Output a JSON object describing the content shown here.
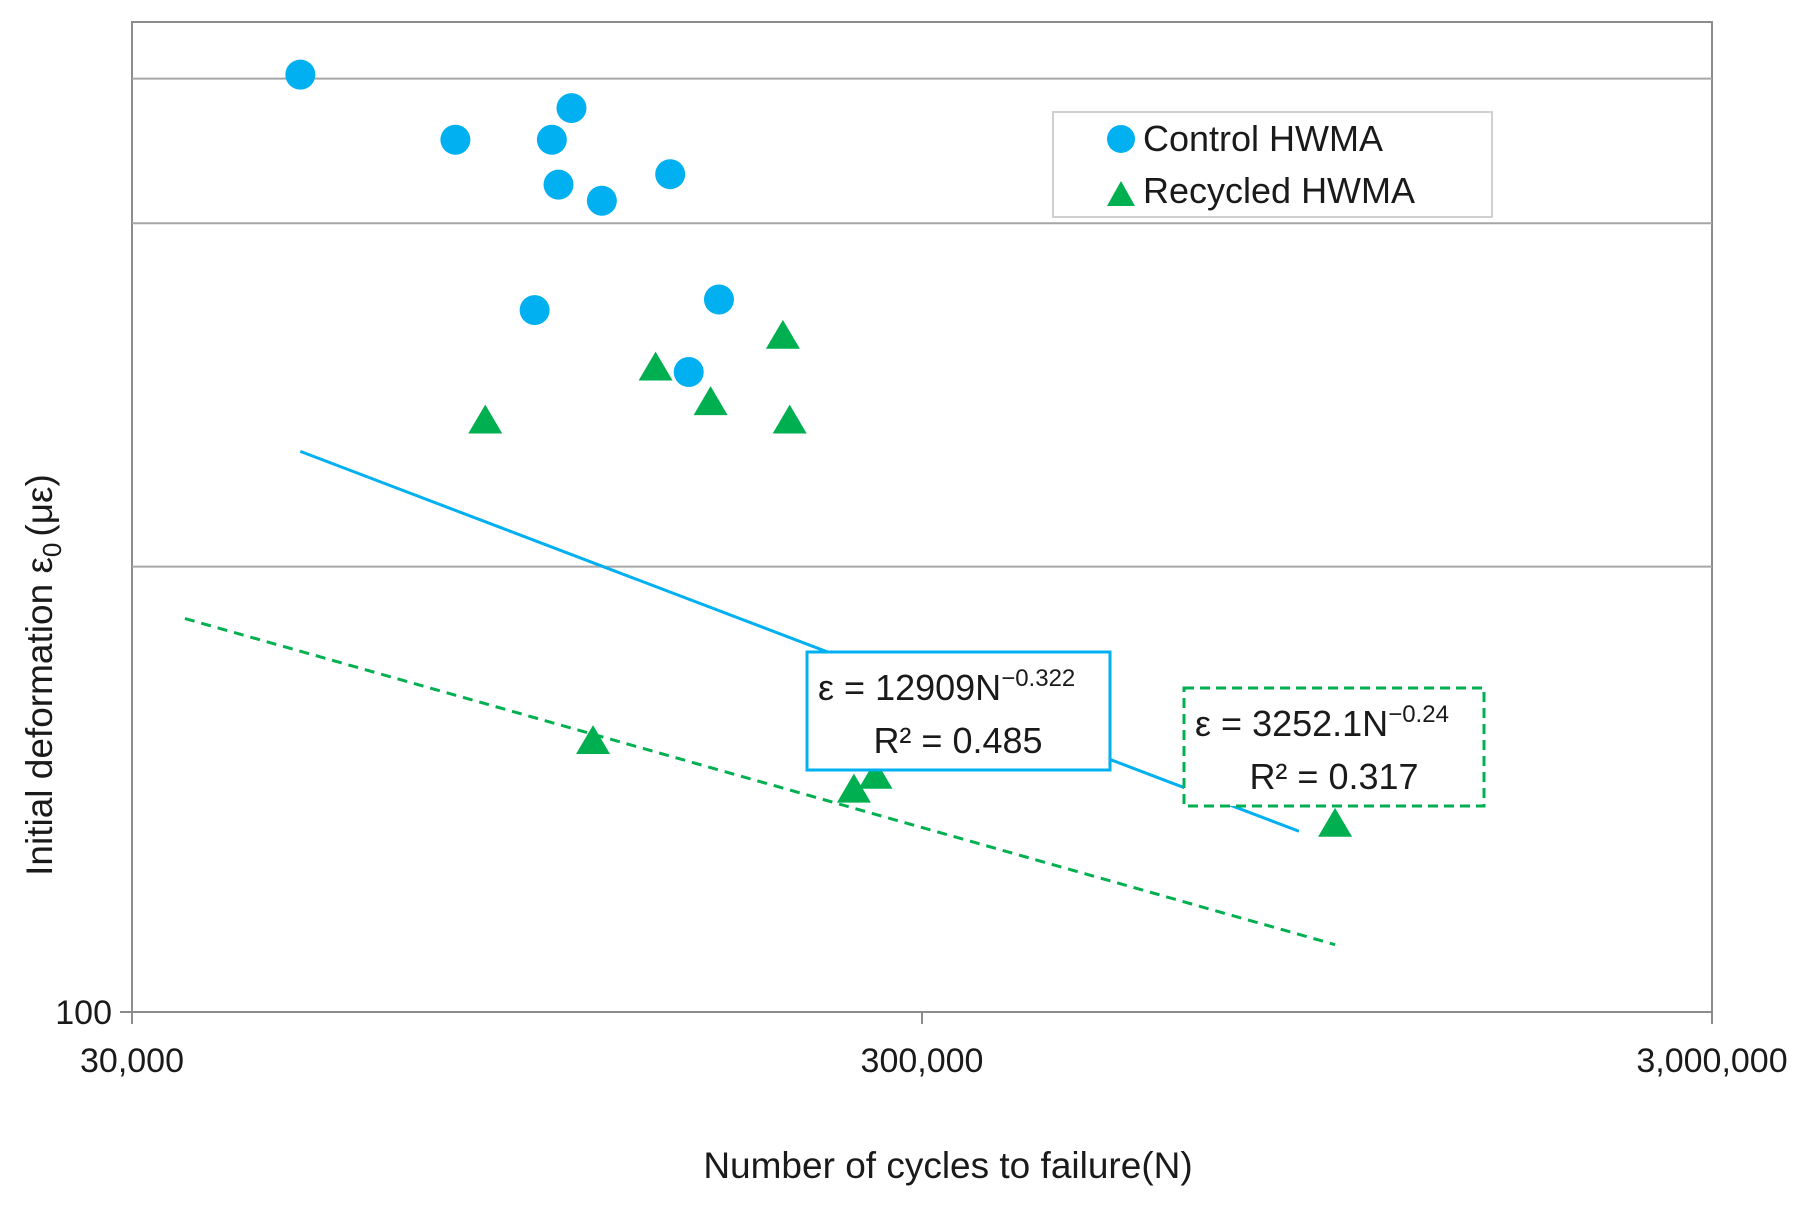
{
  "chart_data": {
    "type": "scatter",
    "xlabel": "Number of cycles to failure(N)",
    "ylabel": "Initial deformation ε",
    "ylabel_subscript": "0",
    "ylabel_unit": "(με)",
    "x_scale": "log",
    "y_scale": "log",
    "xlim": [
      30000,
      3000000
    ],
    "ylim": [
      100,
      1150
    ],
    "x_ticks": [
      {
        "value": 30000,
        "label": "30,000"
      },
      {
        "value": 300000,
        "label": "300,000"
      },
      {
        "value": 3000000,
        "label": "3,000,000"
      }
    ],
    "y_ticks": [
      {
        "value": 100,
        "label": "100"
      }
    ],
    "y_gridlines": [
      300,
      700,
      1000
    ],
    "legend_position": "top-right",
    "series": [
      {
        "name": "Control HWMA",
        "marker": "circle",
        "color": "#00B0F0",
        "points": [
          {
            "x": 49000,
            "y": 1010
          },
          {
            "x": 77000,
            "y": 860
          },
          {
            "x": 102000,
            "y": 860
          },
          {
            "x": 108000,
            "y": 930
          },
          {
            "x": 104000,
            "y": 770
          },
          {
            "x": 118000,
            "y": 740
          },
          {
            "x": 144000,
            "y": 790
          },
          {
            "x": 97000,
            "y": 565
          },
          {
            "x": 166000,
            "y": 580
          },
          {
            "x": 152000,
            "y": 485
          }
        ],
        "trendline": {
          "equation": "ε = 12909N",
          "exponent": "−0.322",
          "r2_label": "R² = 0.485",
          "style": "solid",
          "from_x": 49000,
          "to_x": 900000
        }
      },
      {
        "name": "Recycled HWMA",
        "marker": "triangle",
        "color": "#00B050",
        "points": [
          {
            "x": 84000,
            "y": 430
          },
          {
            "x": 138000,
            "y": 490
          },
          {
            "x": 162000,
            "y": 450
          },
          {
            "x": 200000,
            "y": 530
          },
          {
            "x": 204000,
            "y": 430
          },
          {
            "x": 115000,
            "y": 195
          },
          {
            "x": 246000,
            "y": 173
          },
          {
            "x": 262000,
            "y": 179
          },
          {
            "x": 1000000,
            "y": 159
          }
        ],
        "trendline": {
          "equation": "ε = 3252.1N",
          "exponent": "−0.24",
          "r2_label": "R² = 0.317",
          "style": "dashed",
          "from_x": 35000,
          "to_x": 1000000
        }
      }
    ]
  }
}
